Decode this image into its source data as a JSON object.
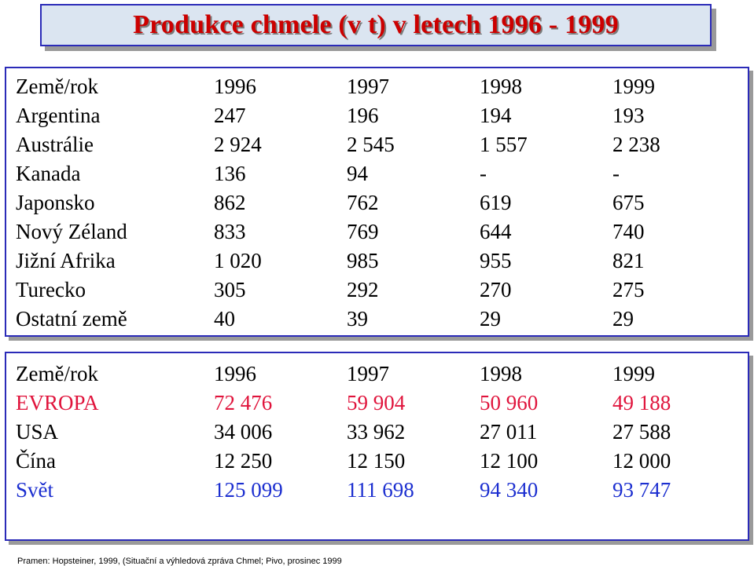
{
  "title": "Produkce chmele (v t) v letech 1996 - 1999",
  "table1": {
    "header": [
      "Země/rok",
      "1996",
      "1997",
      "1998",
      "1999"
    ],
    "rows": [
      [
        "Argentina",
        "247",
        "196",
        "194",
        "193"
      ],
      [
        "Austrálie",
        "2 924",
        "2 545",
        "1 557",
        "2 238"
      ],
      [
        "Kanada",
        "136",
        "94",
        "-",
        "-"
      ],
      [
        "Japonsko",
        "862",
        "762",
        "619",
        "675"
      ],
      [
        "Nový Zéland",
        "833",
        "769",
        "644",
        "740"
      ],
      [
        "Jižní Afrika",
        "1 020",
        "985",
        "955",
        "821"
      ],
      [
        "Turecko",
        "305",
        "292",
        "270",
        "275"
      ],
      [
        "Ostatní země",
        "40",
        "39",
        "29",
        "29"
      ]
    ]
  },
  "table2": {
    "header": [
      "Země/rok",
      "1996",
      "1997",
      "1998",
      "1999"
    ],
    "rows": [
      [
        "EVROPA",
        "72 476",
        "59 904",
        "50 960",
        "49 188"
      ],
      [
        "USA",
        "34 006",
        "33 962",
        "27 011",
        "27 588"
      ],
      [
        "Čína",
        "12 250",
        "12 150",
        "12 100",
        "12 000"
      ],
      [
        "Svět",
        "125 099",
        "111 698",
        "94 340",
        "93 747"
      ]
    ]
  },
  "colors": {
    "title": "#cc0000",
    "frame": "#2b2bb8",
    "europe_row": "#e0143c",
    "world_row": "#1c2fd0"
  },
  "source": "Pramen: Hopsteiner, 1999, (Situační a výhledová zpráva Chmel; Pivo, prosinec 1999"
}
